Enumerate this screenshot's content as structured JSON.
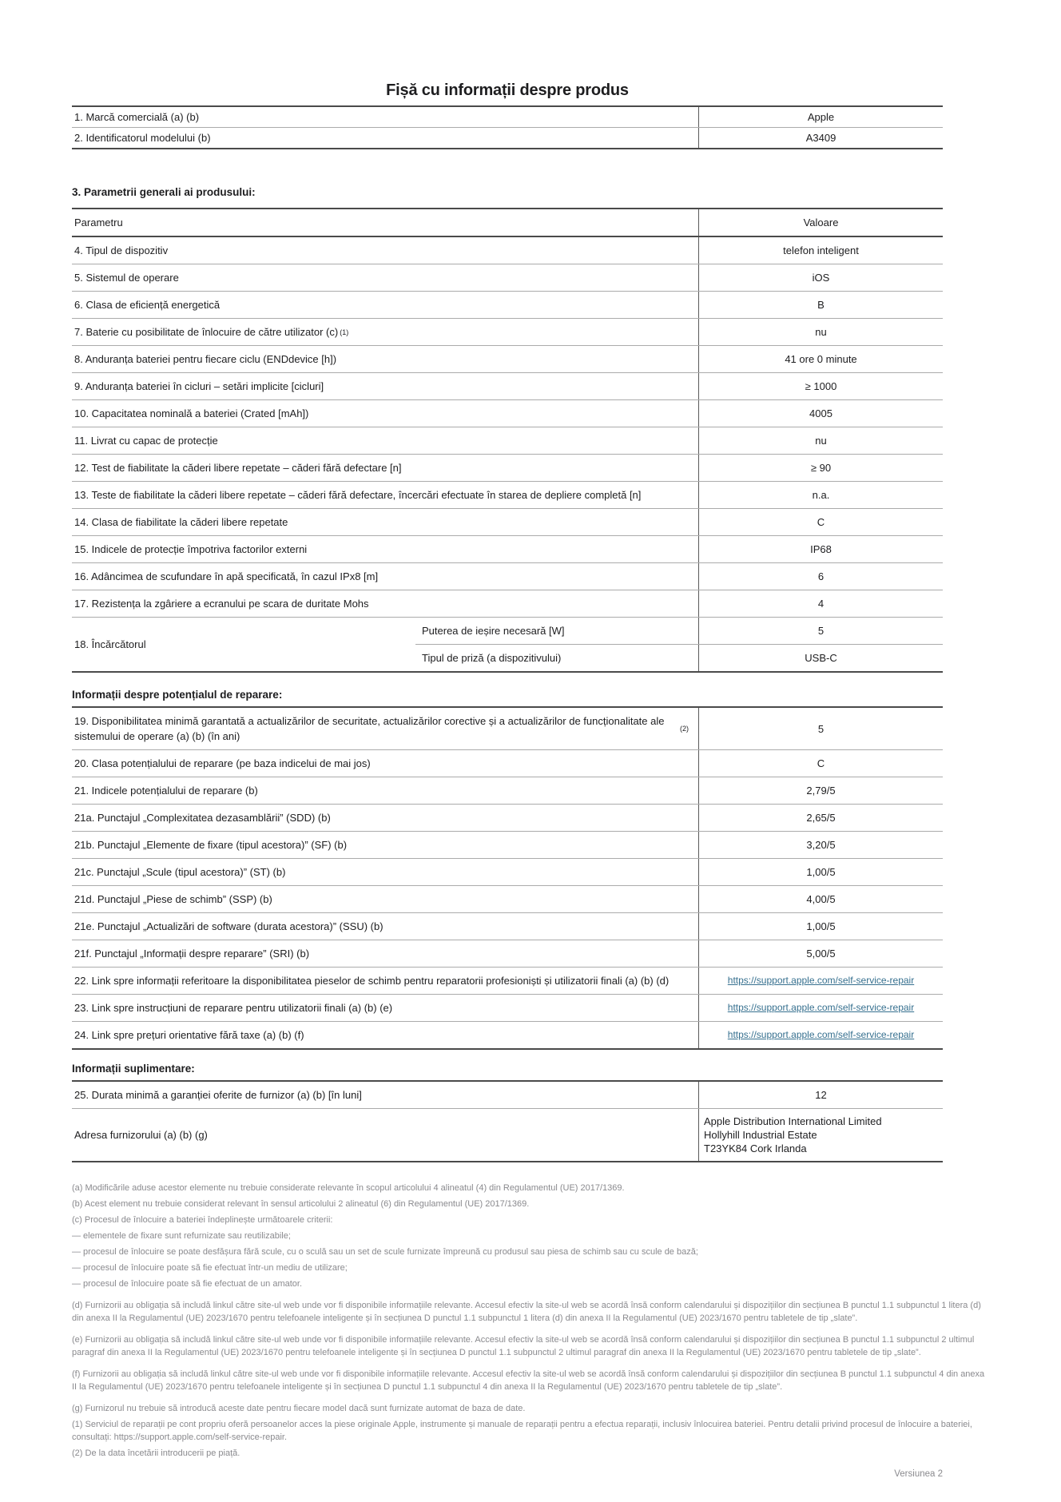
{
  "page": {
    "title": "Fișă cu informații despre produs",
    "version": "Versiunea 2"
  },
  "colors": {
    "link": "#36708f",
    "muted": "#8a8a8e",
    "text": "#1d1d1f",
    "border_heavy": "#4a4a4a",
    "border_light": "#ababab"
  },
  "tables": {
    "identity": {
      "rows": [
        {
          "label": "1. Marcă comercială (a) (b)",
          "value": "Apple"
        },
        {
          "label": "2. Identificatorul modelului (b)",
          "value": "A3409"
        }
      ]
    },
    "general": {
      "heading": "3. Parametrii generali ai produsului:",
      "columns": {
        "param": "Parametru",
        "value": "Valoare"
      },
      "rows": [
        {
          "label": "4. Tipul de dispozitiv",
          "value": "telefon inteligent"
        },
        {
          "label": "5. Sistemul de operare",
          "value": "iOS"
        },
        {
          "label": "6. Clasa de eficiență energetică",
          "value": "B"
        },
        {
          "label": "7. Baterie cu posibilitate de înlocuire de către utilizator (c)",
          "sup": "(1)",
          "value": "nu"
        },
        {
          "label": "8. Anduranța bateriei pentru fiecare ciclu (ENDdevice [h])",
          "value": "41 ore 0 minute"
        },
        {
          "label": "9. Anduranța bateriei în cicluri – setări implicite [cicluri]",
          "value": "≥ 1000"
        },
        {
          "label": "10. Capacitatea nominală a bateriei (Crated [mAh])",
          "value": "4005"
        },
        {
          "label": "11. Livrat cu capac de protecție",
          "value": "nu"
        },
        {
          "label": "12. Test de fiabilitate la căderi libere repetate – căderi fără defectare [n]",
          "value": "≥ 90"
        },
        {
          "label": "13. Teste de fiabilitate la căderi libere repetate – căderi fără defectare, încercări efectuate în starea de depliere completă [n]",
          "value": "n.a."
        },
        {
          "label": "14. Clasa de fiabilitate la căderi libere repetate",
          "value": "C"
        },
        {
          "label": "15. Indicele de protecție împotriva factorilor externi",
          "value": "IP68"
        },
        {
          "label": "16. Adâncimea de scufundare în apă specificată, în cazul IPx8 [m]",
          "value": "6"
        },
        {
          "label": "17. Rezistența la zgâriere a ecranului pe scara de duritate Mohs",
          "value": "4"
        },
        {
          "label": "18. Încărcătorul",
          "subrows": [
            {
              "label": "Puterea de ieșire necesară [W]",
              "value": "5"
            },
            {
              "label": "Tipul de priză (a dispozitivului)",
              "value": "USB-C"
            }
          ]
        }
      ]
    },
    "repair": {
      "heading": "Informații despre potențialul de reparare:",
      "rows": [
        {
          "label": "19. Disponibilitatea minimă garantată a actualizărilor de securitate, actualizărilor corective și a actualizărilor de funcționalitate ale sistemului de operare (a) (b) (în ani)",
          "sup": "(2)",
          "value": "5"
        },
        {
          "label": "20. Clasa potențialului de reparare (pe baza indicelui de mai jos)",
          "value": "C"
        },
        {
          "label": "21. Indicele potențialului de reparare (b)",
          "value": "2,79/5"
        },
        {
          "label": "21a. Punctajul „Complexitatea dezasamblării” (SDD) (b)",
          "value": "2,65/5"
        },
        {
          "label": "21b. Punctajul „Elemente de fixare (tipul acestora)” (SF) (b)",
          "value": "3,20/5"
        },
        {
          "label": "21c. Punctajul „Scule (tipul acestora)” (ST) (b)",
          "value": "1,00/5"
        },
        {
          "label": "21d. Punctajul „Piese de schimb” (SSP) (b)",
          "value": "4,00/5"
        },
        {
          "label": "21e. Punctajul „Actualizări de software (durata acestora)” (SSU) (b)",
          "value": "1,00/5"
        },
        {
          "label": "21f. Punctajul „Informații despre reparare” (SRI) (b)",
          "value": "5,00/5"
        },
        {
          "label": "22. Link spre informații referitoare la disponibilitatea pieselor de schimb pentru reparatorii profesioniști și utilizatorii finali (a) (b) (d)",
          "link": "https://support.apple.com/self-service-repair"
        },
        {
          "label": "23. Link spre instrucțiuni de reparare pentru utilizatorii finali (a) (b) (e)",
          "link": "https://support.apple.com/self-service-repair"
        },
        {
          "label": "24. Link spre prețuri orientative fără taxe (a) (b) (f)",
          "link": "https://support.apple.com/self-service-repair"
        }
      ]
    },
    "additional": {
      "heading": "Informații suplimentare:",
      "rows": [
        {
          "label": "25. Durata minimă a garanției oferite de furnizor (a) (b) [în luni]",
          "value": "12"
        },
        {
          "label": "Adresa furnizorului (a) (b) (g)",
          "value_lines": [
            "Apple Distribution International Limited",
            "Hollyhill Industrial Estate",
            "T23YK84 Cork Irlanda"
          ]
        }
      ]
    }
  },
  "footnotes": [
    {
      "text": "(a) Modificările aduse acestor elemente nu trebuie considerate relevante în scopul articolului 4 alineatul (4) din Regulamentul (UE) 2017/1369."
    },
    {
      "text": "(b) Acest element nu trebuie considerat relevant în sensul articolului 2 alineatul (6) din Regulamentul (UE) 2017/1369."
    },
    {
      "text": "(c) Procesul de înlocuire a bateriei îndeplinește următoarele criterii:"
    },
    {
      "text": "— elementele de fixare sunt refurnizate sau reutilizabile;"
    },
    {
      "text": "— procesul de înlocuire se poate desfășura fără scule, cu o sculă sau un set de scule furnizate împreună cu produsul sau piesa de schimb sau cu scule de bază;"
    },
    {
      "text": "— procesul de înlocuire poate să fie efectuat într-un mediu de utilizare;"
    },
    {
      "text": "— procesul de înlocuire poate să fie efectuat de un amator."
    },
    {
      "text": "(d) Furnizorii au obligația să includă linkul către site-ul web unde vor fi disponibile informațiile relevante. Accesul efectiv la site-ul web se acordă însă conform calendarului și dispozițiilor din secțiunea B punctul 1.1 subpunctul 1 litera (d) din anexa II la Regulamentul (UE) 2023/1670 pentru telefoanele inteligente și în secțiunea D punctul 1.1 subpunctul 1 litera (d) din anexa II la Regulamentul (UE) 2023/1670 pentru tabletele de tip „slate”.",
      "gap": true
    },
    {
      "text": "(e) Furnizorii au obligația să includă linkul către site-ul web unde vor fi disponibile informațiile relevante. Accesul efectiv la site-ul web se acordă însă conform calendarului și dispozițiilor din secțiunea B punctul 1.1 subpunctul 2 ultimul paragraf din anexa II la Regulamentul (UE) 2023/1670 pentru telefoanele inteligente și în secțiunea D punctul 1.1 subpunctul 2 ultimul paragraf din anexa II la Regulamentul (UE) 2023/1670 pentru tabletele de tip „slate”.",
      "gap": true
    },
    {
      "text": "(f) Furnizorii au obligația să includă linkul către site-ul web unde vor fi disponibile informațiile relevante. Accesul efectiv la site-ul web se acordă însă conform calendarului și dispozițiilor din secțiunea B punctul 1.1 subpunctul 4 din anexa II la Regulamentul (UE) 2023/1670 pentru telefoanele inteligente și în secțiunea D punctul 1.1 subpunctul 4 din anexa II la Regulamentul (UE) 2023/1670 pentru tabletele de tip „slate”.",
      "gap": true
    },
    {
      "text": "(g) Furnizorul nu trebuie să introducă aceste date pentru fiecare model dacă sunt furnizate automat de baza de date.",
      "gap": true
    },
    {
      "text": "(1) Serviciul de reparații pe cont propriu oferă persoanelor acces la piese originale Apple, instrumente și manuale de reparații pentru a efectua reparații, inclusiv înlocuirea bateriei. Pentru detalii privind procesul de înlocuire a bateriei, consultați: https://support.apple.com/self-service-repair."
    },
    {
      "text": "(2) De la data încetării introducerii pe piață."
    }
  ]
}
